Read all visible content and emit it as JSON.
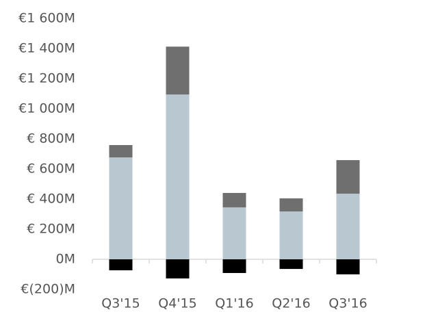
{
  "chart_data": {
    "type": "stacked_bar",
    "categories": [
      "Q3'15",
      "Q4'15",
      "Q1'16",
      "Q2'16",
      "Q3'16"
    ],
    "series": [
      {
        "color": "#b8c7d0",
        "values": [
          677,
          1095,
          345,
          318,
          436
        ]
      },
      {
        "color": "#6f6f6f",
        "values": [
          82,
          318,
          96,
          87,
          223
        ]
      },
      {
        "color": "#000000",
        "values": [
          -73,
          -127,
          -91,
          -64,
          -100
        ]
      }
    ],
    "ylim": [
      -200,
      1600
    ],
    "yticks": [
      {
        "value": -200,
        "label": "€(200)M"
      },
      {
        "value": 0,
        "label": "0M"
      },
      {
        "value": 200,
        "label": "€ 200M"
      },
      {
        "value": 400,
        "label": "€ 400M"
      },
      {
        "value": 600,
        "label": "€ 600M"
      },
      {
        "value": 800,
        "label": "€ 800M"
      },
      {
        "value": 1000,
        "label": "€1 000M"
      },
      {
        "value": 1200,
        "label": "€1 200M"
      },
      {
        "value": 1400,
        "label": "€1 400M"
      },
      {
        "value": 1600,
        "label": "€1 600M"
      }
    ],
    "grid": false
  }
}
